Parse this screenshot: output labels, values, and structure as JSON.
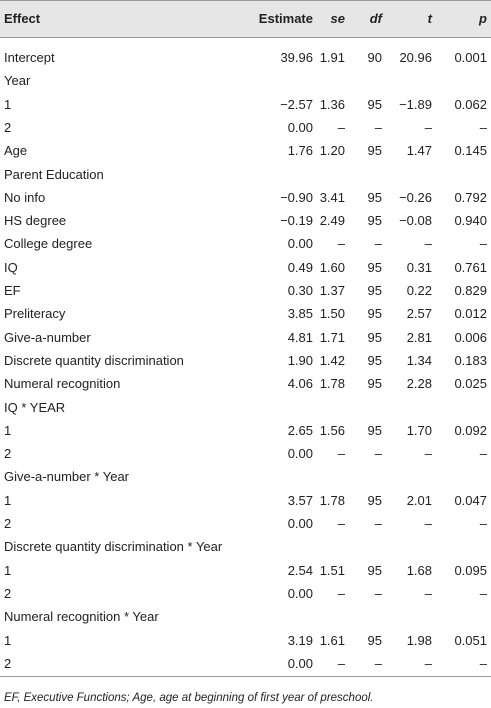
{
  "table": {
    "header": [
      "Effect",
      "Estimate",
      "se",
      "df",
      "t",
      "p"
    ],
    "rows": [
      [
        "Intercept",
        "39.96",
        "1.91",
        "90",
        "20.96",
        "0.001"
      ],
      [
        "Year"
      ],
      [
        "1",
        "−2.57",
        "1.36",
        "95",
        "−1.89",
        "0.062"
      ],
      [
        "2",
        "0.00",
        "–",
        "–",
        "–",
        "–"
      ],
      [
        "Age",
        "1.76",
        "1.20",
        "95",
        "1.47",
        "0.145"
      ],
      [
        "Parent Education"
      ],
      [
        "No info",
        "−0.90",
        "3.41",
        "95",
        "−0.26",
        "0.792"
      ],
      [
        "HS degree",
        "−0.19",
        "2.49",
        "95",
        "−0.08",
        "0.940"
      ],
      [
        "College degree",
        "0.00",
        "–",
        "–",
        "–",
        "–"
      ],
      [
        "IQ",
        "0.49",
        "1.60",
        "95",
        "0.31",
        "0.761"
      ],
      [
        "EF",
        "0.30",
        "1.37",
        "95",
        "0.22",
        "0.829"
      ],
      [
        "Preliteracy",
        "3.85",
        "1.50",
        "95",
        "2.57",
        "0.012"
      ],
      [
        "Give-a-number",
        "4.81",
        "1.71",
        "95",
        "2.81",
        "0.006"
      ],
      [
        "Discrete quantity discrimination",
        "1.90",
        "1.42",
        "95",
        "1.34",
        "0.183"
      ],
      [
        "Numeral recognition",
        "4.06",
        "1.78",
        "95",
        "2.28",
        "0.025"
      ],
      [
        "IQ * YEAR"
      ],
      [
        "1",
        "2.65",
        "1.56",
        "95",
        "1.70",
        "0.092"
      ],
      [
        "2",
        "0.00",
        "–",
        "–",
        "–",
        "–"
      ],
      [
        "Give-a-number * Year"
      ],
      [
        "1",
        "3.57",
        "1.78",
        "95",
        "2.01",
        "0.047"
      ],
      [
        "2",
        "0.00",
        "–",
        "–",
        "–",
        "–"
      ],
      [
        "Discrete quantity discrimination * Year"
      ],
      [
        "1",
        "2.54",
        "1.51",
        "95",
        "1.68",
        "0.095"
      ],
      [
        "2",
        "0.00",
        "–",
        "–",
        "–",
        "–"
      ],
      [
        "Numeral recognition * Year"
      ],
      [
        "1",
        "3.19",
        "1.61",
        "95",
        "1.98",
        "0.051"
      ],
      [
        "2",
        "0.00",
        "–",
        "–",
        "–",
        "–"
      ]
    ],
    "footnote": "EF, Executive Functions; Age, age at beginning of first year of preschool."
  }
}
